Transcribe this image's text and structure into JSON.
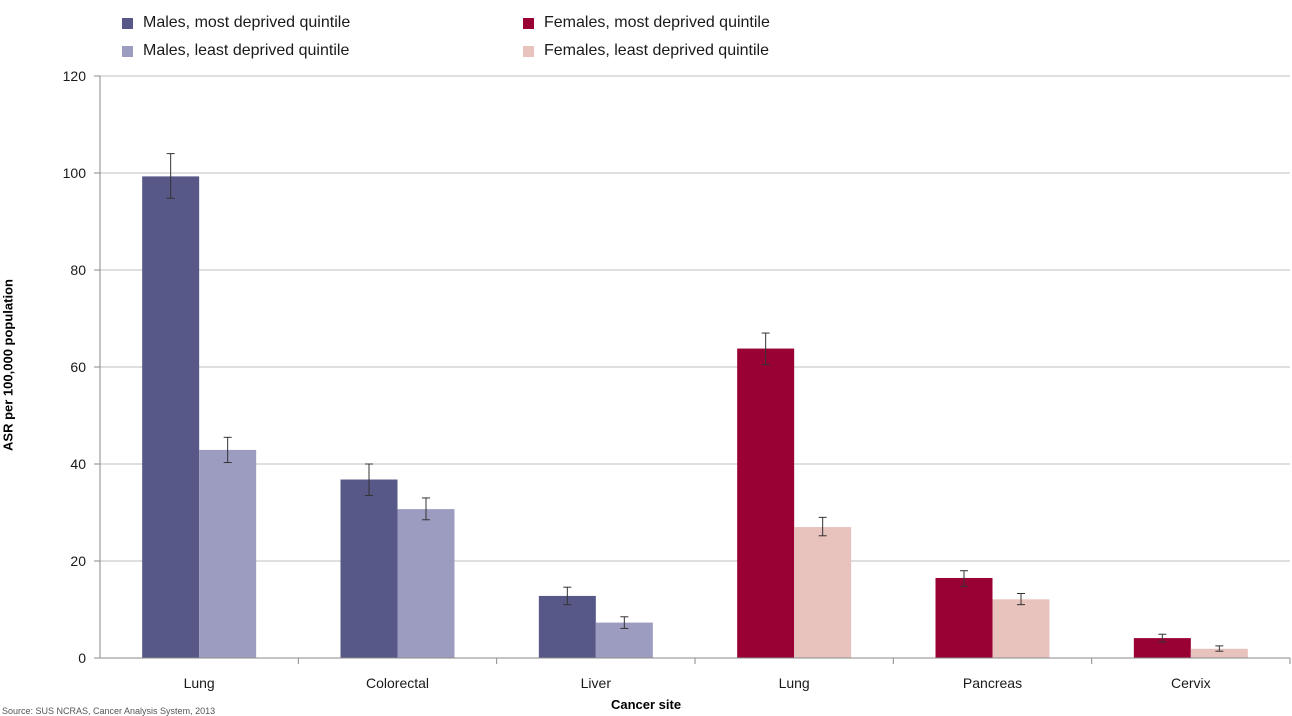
{
  "chart_data": {
    "type": "bar",
    "categories": [
      "Lung",
      "Colorectal",
      "Liver",
      "Lung",
      "Pancreas",
      "Cervix"
    ],
    "xlabel": "Cancer site",
    "ylabel": "ASR per 100,000 population",
    "ylim": [
      0,
      120
    ],
    "yticks": [
      0,
      20,
      40,
      60,
      80,
      100,
      120
    ],
    "grid": true,
    "legend_position": "top",
    "series": [
      {
        "name": "Males, most deprived quintile",
        "color": "#575888",
        "values": [
          99.3,
          36.8,
          12.8,
          null,
          null,
          null
        ],
        "err_low": [
          94.8,
          33.5,
          11.0,
          null,
          null,
          null
        ],
        "err_high": [
          104.0,
          40.0,
          14.6,
          null,
          null,
          null
        ]
      },
      {
        "name": "Males, least deprived quintile",
        "color": "#9c9cc0",
        "values": [
          42.9,
          30.7,
          7.3,
          null,
          null,
          null
        ],
        "err_low": [
          40.3,
          28.5,
          6.1,
          null,
          null,
          null
        ],
        "err_high": [
          45.5,
          33.0,
          8.5,
          null,
          null,
          null
        ]
      },
      {
        "name": "Females, most deprived quintile",
        "color": "#990033",
        "values": [
          null,
          null,
          null,
          63.8,
          16.5,
          4.1
        ],
        "err_low": [
          null,
          null,
          null,
          60.5,
          14.8,
          3.3
        ],
        "err_high": [
          null,
          null,
          null,
          67.0,
          18.0,
          4.9
        ]
      },
      {
        "name": "Females, least deprived quintile",
        "color": "#e8c2bd",
        "values": [
          null,
          null,
          null,
          27.0,
          12.1,
          1.9
        ],
        "err_low": [
          null,
          null,
          null,
          25.2,
          11.0,
          1.4
        ],
        "err_high": [
          null,
          null,
          null,
          29.0,
          13.3,
          2.5
        ]
      }
    ]
  },
  "footnote": "Source: SUS NCRAS, Cancer Analysis System, 2013"
}
